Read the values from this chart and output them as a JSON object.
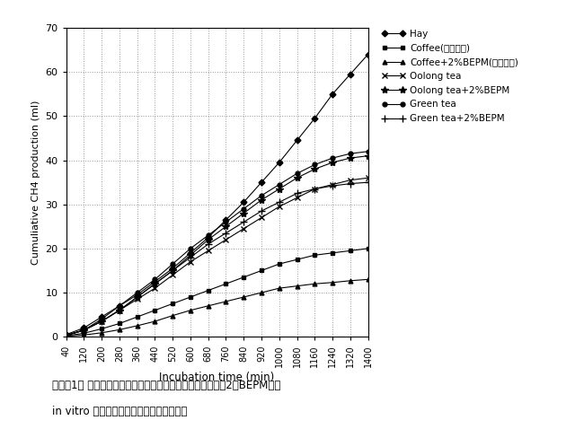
{
  "x_ticks": [
    40,
    120,
    200,
    280,
    360,
    440,
    520,
    600,
    680,
    760,
    840,
    920,
    1000,
    1080,
    1160,
    1240,
    1320,
    1400
  ],
  "xlim": [
    40,
    1400
  ],
  "ylim": [
    0,
    70
  ],
  "yticks": [
    0,
    10,
    20,
    30,
    40,
    50,
    60,
    70
  ],
  "xlabel": "Incubation time (min)",
  "ylabel": "Cumuliative CH4 production (ml)",
  "series": [
    {
      "label": "Hay",
      "marker": "D",
      "markersize": 3.5,
      "color": "#000000",
      "data_points": [
        [
          40,
          0.5
        ],
        [
          120,
          2
        ],
        [
          200,
          4.5
        ],
        [
          280,
          7
        ],
        [
          360,
          9.5
        ],
        [
          440,
          12.5
        ],
        [
          520,
          15.5
        ],
        [
          600,
          19
        ],
        [
          680,
          22.5
        ],
        [
          760,
          26.5
        ],
        [
          840,
          30.5
        ],
        [
          920,
          35
        ],
        [
          1000,
          39.5
        ],
        [
          1080,
          44.5
        ],
        [
          1160,
          49.5
        ],
        [
          1240,
          55
        ],
        [
          1320,
          59.5
        ],
        [
          1400,
          64
        ]
      ]
    },
    {
      "label": "Coffee(比較例１)",
      "marker": "s",
      "markersize": 3.5,
      "color": "#000000",
      "data_points": [
        [
          40,
          0.2
        ],
        [
          120,
          0.8
        ],
        [
          200,
          1.8
        ],
        [
          280,
          3
        ],
        [
          360,
          4.5
        ],
        [
          440,
          6
        ],
        [
          520,
          7.5
        ],
        [
          600,
          9
        ],
        [
          680,
          10.5
        ],
        [
          760,
          12
        ],
        [
          840,
          13.5
        ],
        [
          920,
          15
        ],
        [
          1000,
          16.5
        ],
        [
          1080,
          17.5
        ],
        [
          1160,
          18.5
        ],
        [
          1240,
          19
        ],
        [
          1320,
          19.5
        ],
        [
          1400,
          20
        ]
      ]
    },
    {
      "label": "Coffee+2%BEPM(実施例１)",
      "marker": "^",
      "markersize": 3.5,
      "color": "#000000",
      "data_points": [
        [
          40,
          0.1
        ],
        [
          120,
          0.4
        ],
        [
          200,
          0.9
        ],
        [
          280,
          1.6
        ],
        [
          360,
          2.5
        ],
        [
          440,
          3.5
        ],
        [
          520,
          4.8
        ],
        [
          600,
          6
        ],
        [
          680,
          7
        ],
        [
          760,
          8
        ],
        [
          840,
          9
        ],
        [
          920,
          10
        ],
        [
          1000,
          11
        ],
        [
          1080,
          11.5
        ],
        [
          1160,
          12
        ],
        [
          1240,
          12.3
        ],
        [
          1320,
          12.7
        ],
        [
          1400,
          13
        ]
      ]
    },
    {
      "label": "Oolong tea",
      "marker": "x",
      "markersize": 5,
      "color": "#000000",
      "data_points": [
        [
          40,
          0.3
        ],
        [
          120,
          1.5
        ],
        [
          200,
          3.5
        ],
        [
          280,
          6
        ],
        [
          360,
          8.5
        ],
        [
          440,
          11
        ],
        [
          520,
          14
        ],
        [
          600,
          17
        ],
        [
          680,
          19.5
        ],
        [
          760,
          22
        ],
        [
          840,
          24.5
        ],
        [
          920,
          27
        ],
        [
          1000,
          29.5
        ],
        [
          1080,
          31.5
        ],
        [
          1160,
          33.5
        ],
        [
          1240,
          34.5
        ],
        [
          1320,
          35.5
        ],
        [
          1400,
          36
        ]
      ]
    },
    {
      "label": "Oolong tea+2%BEPM",
      "marker": "*",
      "markersize": 6,
      "color": "#000000",
      "data_points": [
        [
          40,
          0.3
        ],
        [
          120,
          1.5
        ],
        [
          200,
          3.5
        ],
        [
          280,
          6
        ],
        [
          360,
          9
        ],
        [
          440,
          12
        ],
        [
          520,
          15
        ],
        [
          600,
          18.5
        ],
        [
          680,
          22
        ],
        [
          760,
          25
        ],
        [
          840,
          28
        ],
        [
          920,
          31
        ],
        [
          1000,
          33.5
        ],
        [
          1080,
          36
        ],
        [
          1160,
          38
        ],
        [
          1240,
          39.5
        ],
        [
          1320,
          40.5
        ],
        [
          1400,
          41
        ]
      ]
    },
    {
      "label": "Green tea",
      "marker": "o",
      "markersize": 3.5,
      "color": "#000000",
      "data_points": [
        [
          40,
          0.3
        ],
        [
          120,
          1.5
        ],
        [
          200,
          4
        ],
        [
          280,
          7
        ],
        [
          360,
          10
        ],
        [
          440,
          13
        ],
        [
          520,
          16.5
        ],
        [
          600,
          20
        ],
        [
          680,
          23
        ],
        [
          760,
          26
        ],
        [
          840,
          29
        ],
        [
          920,
          32
        ],
        [
          1000,
          34.5
        ],
        [
          1080,
          37
        ],
        [
          1160,
          39
        ],
        [
          1240,
          40.5
        ],
        [
          1320,
          41.5
        ],
        [
          1400,
          42
        ]
      ]
    },
    {
      "label": "Green tea+2%BEPM",
      "marker": "+",
      "markersize": 6,
      "color": "#000000",
      "data_points": [
        [
          40,
          0.3
        ],
        [
          120,
          1.5
        ],
        [
          200,
          3.5
        ],
        [
          280,
          6
        ],
        [
          360,
          9
        ],
        [
          440,
          12
        ],
        [
          520,
          15
        ],
        [
          600,
          18
        ],
        [
          680,
          21
        ],
        [
          760,
          23.5
        ],
        [
          840,
          26
        ],
        [
          920,
          28.5
        ],
        [
          1000,
          30.5
        ],
        [
          1080,
          32.5
        ],
        [
          1160,
          33.5
        ],
        [
          1240,
          34.2
        ],
        [
          1320,
          34.7
        ],
        [
          1400,
          35
        ]
      ]
    }
  ],
  "caption_line1": "グラフ1． コーヒー箕、烏龍茶箕及び緑茶箕の微生物処理（2％BEPM）が",
  "caption_line2": "in vitro ルーメンメタン発生に及ぼす影響",
  "background_color": "#ffffff",
  "grid_color": "#999999"
}
